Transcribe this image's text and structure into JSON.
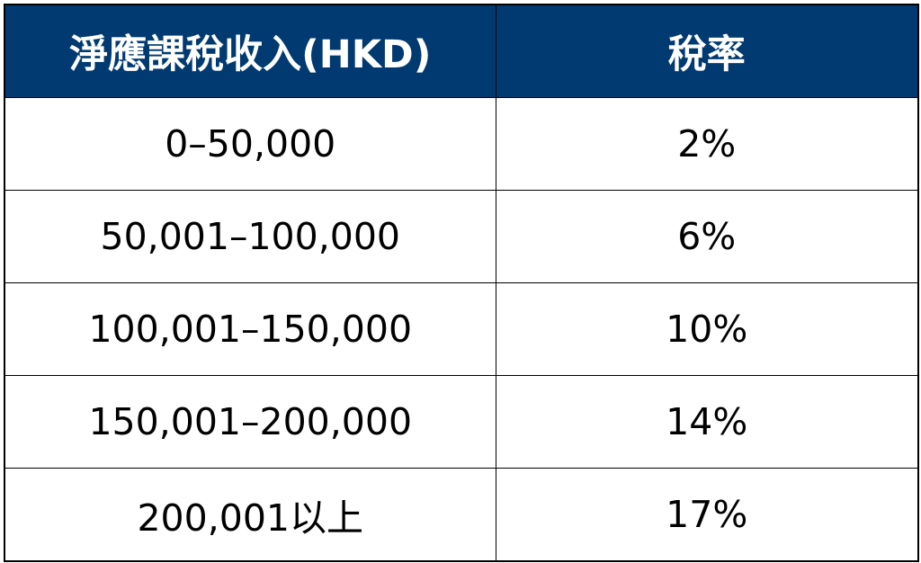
{
  "table": {
    "header": {
      "income": "淨應課稅收入(HKD)",
      "rate": "稅率"
    },
    "rows": [
      {
        "income": "0–50,000",
        "rate": "2%"
      },
      {
        "income": "50,001–100,000",
        "rate": "6%"
      },
      {
        "income": "100,001–150,000",
        "rate": "10%"
      },
      {
        "income": "150,001–200,000",
        "rate": "14%"
      },
      {
        "income": "200,001以上",
        "rate": "17%"
      }
    ],
    "colors": {
      "header_background": "#003a70",
      "header_text": "#ffffff",
      "border": "#000000"
    }
  }
}
